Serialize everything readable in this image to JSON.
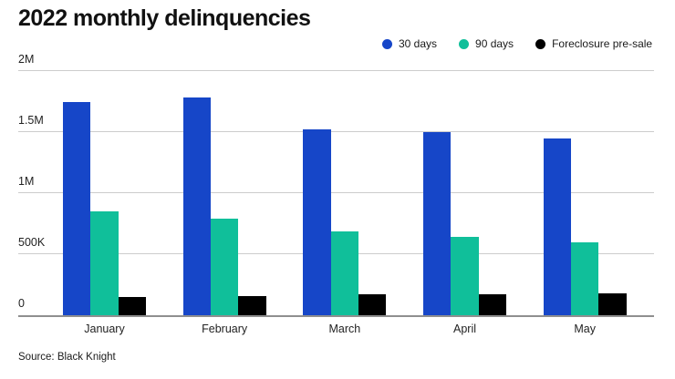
{
  "title": "2022 monthly delinquencies",
  "source": "Source: Black Knight",
  "chart_data": {
    "type": "bar",
    "title": "2022 monthly delinquencies",
    "categories": [
      "January",
      "February",
      "March",
      "April",
      "May"
    ],
    "series": [
      {
        "name": "30 days",
        "color": "#1646c8",
        "values": [
          1750000,
          1780000,
          1520000,
          1500000,
          1450000
        ]
      },
      {
        "name": "90 days",
        "color": "#10bf9a",
        "values": [
          850000,
          790000,
          690000,
          640000,
          600000
        ]
      },
      {
        "name": "Foreclosure pre-sale",
        "color": "#000000",
        "values": [
          150000,
          160000,
          170000,
          175000,
          180000
        ]
      }
    ],
    "ylim": [
      0,
      2000000
    ],
    "yticks": [
      {
        "value": 0,
        "label": "0"
      },
      {
        "value": 500000,
        "label": "500K"
      },
      {
        "value": 1000000,
        "label": "1M"
      },
      {
        "value": 1500000,
        "label": "1.5M"
      },
      {
        "value": 2000000,
        "label": "2M"
      }
    ],
    "xlabel": "",
    "ylabel": "",
    "grid": true,
    "legend_position": "top-right",
    "source": "Source: Black Knight"
  }
}
